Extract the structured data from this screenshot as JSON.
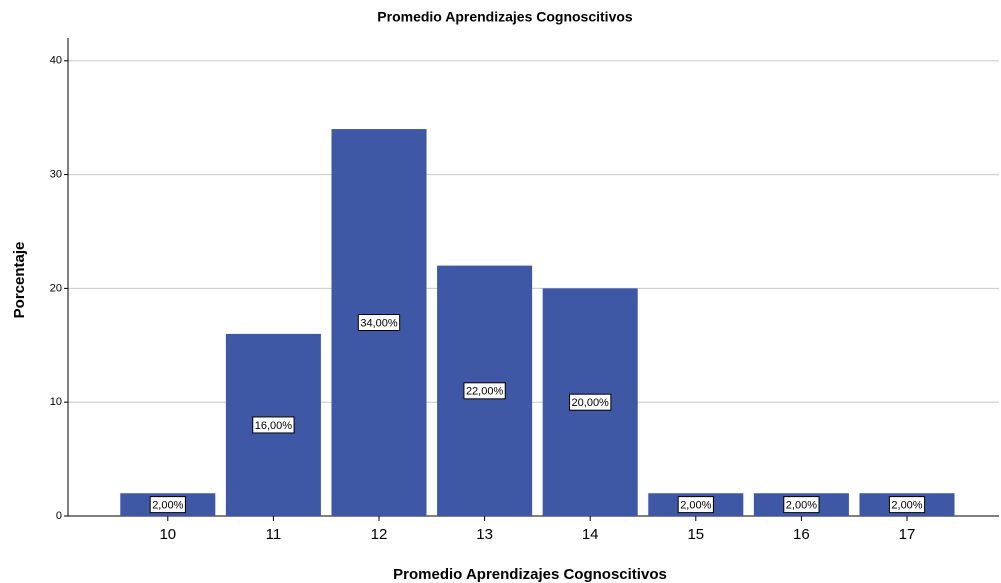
{
  "chart_data": {
    "type": "bar",
    "title": "Promedio Aprendizajes Cognoscitivos",
    "x_label": "Promedio Aprendizajes Cognoscitivos",
    "y_label": "Porcentaje",
    "categories": [
      "10",
      "11",
      "12",
      "13",
      "14",
      "15",
      "16",
      "17"
    ],
    "values": [
      2,
      16,
      34,
      22,
      20,
      2,
      2,
      2
    ],
    "value_labels": [
      "2,00%",
      "16,00%",
      "34,00%",
      "22,00%",
      "20,00%",
      "2,00%",
      "2,00%",
      "2,00%"
    ],
    "color": "#3f58a6",
    "ylim": [
      0,
      42
    ],
    "yticks": [
      0,
      10,
      20,
      30,
      40
    ],
    "grid": true
  }
}
